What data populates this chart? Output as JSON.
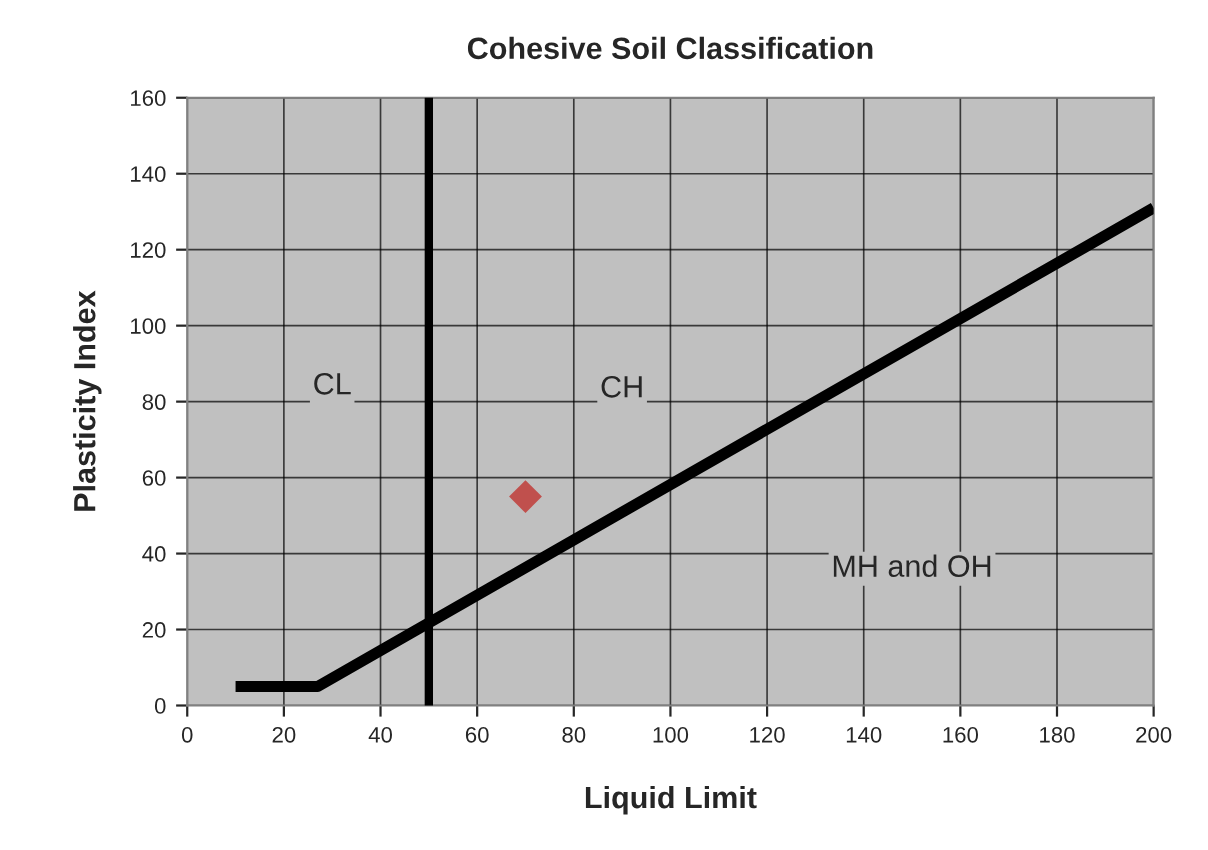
{
  "chart_data": {
    "type": "line",
    "title": "Cohesive Soil Classification",
    "xlabel": "Liquid Limit",
    "ylabel": "Plasticity Index",
    "xlim": [
      0,
      200
    ],
    "xticks": [
      0,
      20,
      40,
      60,
      80,
      100,
      120,
      140,
      160,
      180,
      200
    ],
    "ylim": [
      0,
      160
    ],
    "yticks": [
      0,
      20,
      40,
      60,
      80,
      100,
      120,
      140,
      160
    ],
    "grid": true,
    "legend": false,
    "series": [
      {
        "color": "#000000",
        "marker": "none",
        "line_style": "solid",
        "x": [
          10,
          27,
          200
        ],
        "values": [
          5,
          5,
          131
        ]
      },
      {
        "type": "scatter",
        "color": "#c0504d",
        "marker": "diamond",
        "x": [
          70
        ],
        "values": [
          55
        ]
      }
    ],
    "ref_lines": [
      {
        "axis": "x",
        "value": 50,
        "color": "#000000",
        "line_style": "solid"
      }
    ],
    "annotations": [
      "CL",
      "CH",
      "MH and OH"
    ]
  }
}
